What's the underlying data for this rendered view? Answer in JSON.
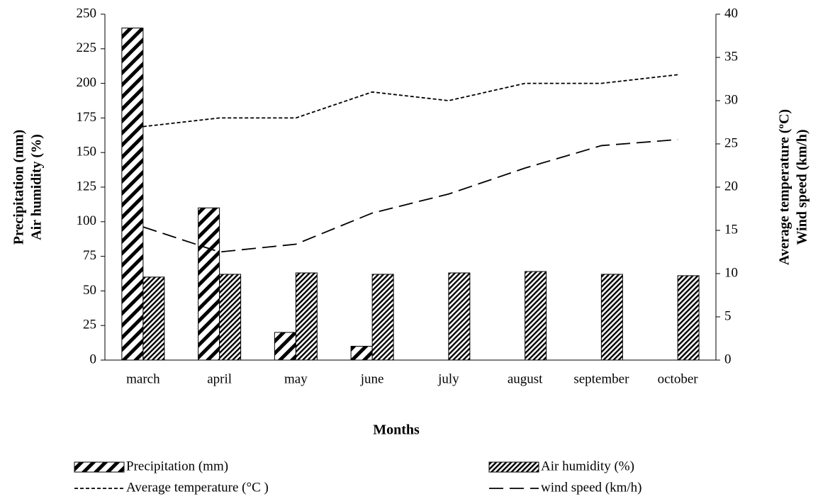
{
  "chart_data": {
    "type": "bar",
    "categories": [
      "march",
      "april",
      "may",
      "june",
      "july",
      "august",
      "september",
      "october"
    ],
    "series": [
      {
        "name": "Precipitation (mm)",
        "type": "bar",
        "color": "#000000",
        "pattern": "wide-hatch",
        "values": [
          240,
          110,
          20,
          10,
          0,
          0,
          0,
          0
        ]
      },
      {
        "name": "Air humidity (%)",
        "type": "bar",
        "color": "#000000",
        "pattern": "dense-hatch",
        "values": [
          60,
          62,
          63,
          62,
          63,
          64,
          62,
          61
        ]
      },
      {
        "name": "Average temperature  (°C )",
        "type": "line",
        "axis": "y2",
        "color": "#000000",
        "line_style": "dotted",
        "values": [
          27,
          28,
          28,
          31,
          30,
          32,
          32,
          33
        ]
      },
      {
        "name": "wind speed (km/h)",
        "type": "line",
        "axis": "y2",
        "color": "#000000",
        "line_style": "dashed",
        "values": [
          15.4,
          12.5,
          13.4,
          17,
          19.2,
          22.2,
          24.8,
          25.5
        ]
      }
    ],
    "xlabel": "Months",
    "ylabel": [
      "Precipitation (mm)",
      "Air humidity (%)"
    ],
    "y2label": [
      "Average temperature (ºC)",
      "Wind speed (km/h)"
    ],
    "ylim": [
      0,
      250
    ],
    "yticks": [
      0,
      25,
      50,
      75,
      100,
      125,
      150,
      175,
      200,
      225,
      250
    ],
    "y2lim": [
      0,
      40
    ],
    "y2ticks": [
      0,
      5,
      10,
      15,
      20,
      25,
      30,
      35,
      40
    ],
    "grid": false,
    "legend": "bottom"
  }
}
